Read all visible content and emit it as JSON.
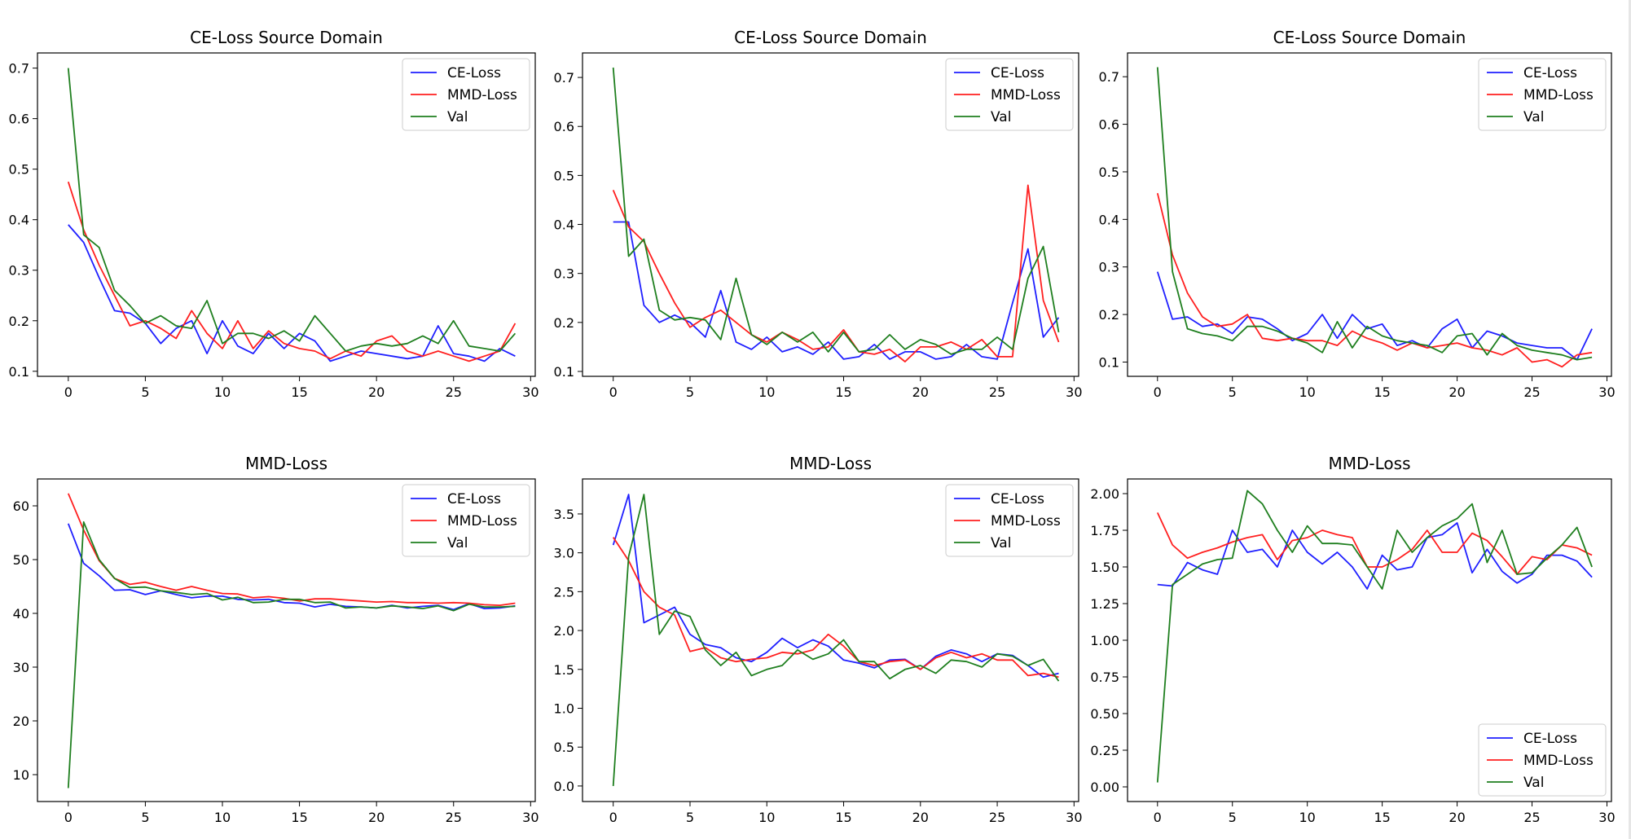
{
  "figure": {
    "background": "#ffffff"
  },
  "colors": {
    "CE-Loss": "#1f1fff",
    "MMD-Loss": "#ff1f1f",
    "Val": "#1f7f1f"
  },
  "chart_data": [
    {
      "type": "line",
      "title": "CE-Loss Source Domain",
      "xlabel": "",
      "ylabel": "",
      "xlim": [
        -2,
        30.3
      ],
      "ylim": [
        0.09,
        0.73
      ],
      "xticks": [
        0,
        5,
        10,
        15,
        20,
        25,
        30
      ],
      "yticks": [
        0.1,
        0.2,
        0.3,
        0.4,
        0.5,
        0.6,
        0.7
      ],
      "tick_decimals": 1,
      "legend_position": "top-right",
      "grid": false,
      "x": [
        0,
        1,
        2,
        3,
        4,
        5,
        6,
        7,
        8,
        9,
        10,
        11,
        12,
        13,
        14,
        15,
        16,
        17,
        18,
        19,
        20,
        21,
        22,
        23,
        24,
        25,
        26,
        27,
        28,
        29
      ],
      "series": [
        {
          "name": "CE-Loss",
          "values": [
            0.39,
            0.355,
            0.285,
            0.22,
            0.215,
            0.195,
            0.155,
            0.185,
            0.2,
            0.135,
            0.2,
            0.15,
            0.135,
            0.175,
            0.145,
            0.175,
            0.16,
            0.12,
            0.13,
            0.14,
            0.135,
            0.13,
            0.125,
            0.13,
            0.19,
            0.135,
            0.13,
            0.12,
            0.145,
            0.13
          ]
        },
        {
          "name": "MMD-Loss",
          "values": [
            0.475,
            0.38,
            0.31,
            0.25,
            0.19,
            0.2,
            0.185,
            0.165,
            0.22,
            0.175,
            0.145,
            0.2,
            0.145,
            0.18,
            0.155,
            0.145,
            0.14,
            0.125,
            0.14,
            0.13,
            0.16,
            0.17,
            0.14,
            0.13,
            0.14,
            0.13,
            0.12,
            0.13,
            0.14,
            0.195
          ]
        },
        {
          "name": "Val",
          "values": [
            0.7,
            0.37,
            0.345,
            0.26,
            0.23,
            0.195,
            0.21,
            0.19,
            0.185,
            0.24,
            0.155,
            0.175,
            0.175,
            0.165,
            0.18,
            0.16,
            0.21,
            0.175,
            0.14,
            0.15,
            0.155,
            0.15,
            0.155,
            0.17,
            0.155,
            0.2,
            0.15,
            0.145,
            0.14,
            0.175
          ]
        }
      ]
    },
    {
      "type": "line",
      "title": "CE-Loss Source Domain",
      "xlabel": "",
      "ylabel": "",
      "xlim": [
        -2,
        30.3
      ],
      "ylim": [
        0.09,
        0.75
      ],
      "xticks": [
        0,
        5,
        10,
        15,
        20,
        25,
        30
      ],
      "yticks": [
        0.1,
        0.2,
        0.3,
        0.4,
        0.5,
        0.6,
        0.7
      ],
      "tick_decimals": 1,
      "legend_position": "top-right",
      "grid": false,
      "x": [
        0,
        1,
        2,
        3,
        4,
        5,
        6,
        7,
        8,
        9,
        10,
        11,
        12,
        13,
        14,
        15,
        16,
        17,
        18,
        19,
        20,
        21,
        22,
        23,
        24,
        25,
        26,
        27,
        28,
        29
      ],
      "series": [
        {
          "name": "CE-Loss",
          "values": [
            0.405,
            0.405,
            0.235,
            0.2,
            0.215,
            0.2,
            0.17,
            0.265,
            0.16,
            0.145,
            0.17,
            0.14,
            0.15,
            0.135,
            0.16,
            0.125,
            0.13,
            0.155,
            0.125,
            0.14,
            0.14,
            0.125,
            0.13,
            0.155,
            0.13,
            0.125,
            0.24,
            0.35,
            0.17,
            0.21
          ]
        },
        {
          "name": "MMD-Loss",
          "values": [
            0.47,
            0.395,
            0.365,
            0.3,
            0.24,
            0.19,
            0.21,
            0.225,
            0.2,
            0.175,
            0.16,
            0.18,
            0.165,
            0.145,
            0.15,
            0.185,
            0.14,
            0.135,
            0.145,
            0.12,
            0.15,
            0.15,
            0.16,
            0.145,
            0.165,
            0.13,
            0.13,
            0.48,
            0.245,
            0.16
          ]
        },
        {
          "name": "Val",
          "values": [
            0.72,
            0.335,
            0.37,
            0.225,
            0.205,
            0.21,
            0.205,
            0.165,
            0.29,
            0.175,
            0.155,
            0.18,
            0.16,
            0.18,
            0.14,
            0.18,
            0.14,
            0.145,
            0.175,
            0.145,
            0.165,
            0.155,
            0.135,
            0.145,
            0.145,
            0.17,
            0.145,
            0.29,
            0.355,
            0.18
          ]
        }
      ]
    },
    {
      "type": "line",
      "title": "CE-Loss Source Domain",
      "xlabel": "",
      "ylabel": "",
      "xlim": [
        -2,
        30.3
      ],
      "ylim": [
        0.07,
        0.75
      ],
      "xticks": [
        0,
        5,
        10,
        15,
        20,
        25,
        30
      ],
      "yticks": [
        0.1,
        0.2,
        0.3,
        0.4,
        0.5,
        0.6,
        0.7
      ],
      "tick_decimals": 1,
      "legend_position": "top-right",
      "grid": false,
      "x": [
        0,
        1,
        2,
        3,
        4,
        5,
        6,
        7,
        8,
        9,
        10,
        11,
        12,
        13,
        14,
        15,
        16,
        17,
        18,
        19,
        20,
        21,
        22,
        23,
        24,
        25,
        26,
        27,
        28,
        29
      ],
      "series": [
        {
          "name": "CE-Loss",
          "values": [
            0.29,
            0.19,
            0.195,
            0.175,
            0.18,
            0.16,
            0.195,
            0.19,
            0.17,
            0.145,
            0.16,
            0.2,
            0.15,
            0.2,
            0.17,
            0.18,
            0.135,
            0.145,
            0.13,
            0.17,
            0.19,
            0.13,
            0.165,
            0.155,
            0.14,
            0.135,
            0.13,
            0.13,
            0.105,
            0.17
          ]
        },
        {
          "name": "MMD-Loss",
          "values": [
            0.455,
            0.325,
            0.245,
            0.195,
            0.175,
            0.18,
            0.2,
            0.15,
            0.145,
            0.15,
            0.145,
            0.145,
            0.135,
            0.165,
            0.15,
            0.14,
            0.125,
            0.14,
            0.13,
            0.135,
            0.14,
            0.13,
            0.125,
            0.115,
            0.13,
            0.1,
            0.105,
            0.09,
            0.115,
            0.12
          ]
        },
        {
          "name": "Val",
          "values": [
            0.72,
            0.29,
            0.17,
            0.16,
            0.155,
            0.145,
            0.175,
            0.175,
            0.165,
            0.15,
            0.14,
            0.12,
            0.185,
            0.13,
            0.175,
            0.155,
            0.145,
            0.14,
            0.135,
            0.12,
            0.155,
            0.16,
            0.115,
            0.16,
            0.135,
            0.125,
            0.12,
            0.115,
            0.105,
            0.11
          ]
        }
      ]
    },
    {
      "type": "line",
      "title": "MMD-Loss",
      "xlabel": "",
      "ylabel": "",
      "xlim": [
        -2,
        30.3
      ],
      "ylim": [
        5,
        65
      ],
      "xticks": [
        0,
        5,
        10,
        15,
        20,
        25,
        30
      ],
      "yticks": [
        10,
        20,
        30,
        40,
        50,
        60
      ],
      "tick_decimals": 0,
      "legend_position": "top-right",
      "grid": false,
      "x": [
        0,
        1,
        2,
        3,
        4,
        5,
        6,
        7,
        8,
        9,
        10,
        11,
        12,
        13,
        14,
        15,
        16,
        17,
        18,
        19,
        20,
        21,
        22,
        23,
        24,
        25,
        26,
        27,
        28,
        29
      ],
      "series": [
        {
          "name": "CE-Loss",
          "values": [
            56.7,
            49.3,
            47.0,
            44.3,
            44.4,
            43.5,
            44.2,
            43.5,
            42.9,
            43.2,
            43.2,
            42.6,
            42.5,
            42.6,
            42.0,
            41.9,
            41.2,
            41.7,
            41.3,
            41.2,
            41.0,
            41.5,
            41.0,
            41.3,
            41.5,
            40.7,
            41.8,
            40.9,
            41.0,
            41.4
          ]
        },
        {
          "name": "MMD-Loss",
          "values": [
            62.3,
            55.5,
            49.8,
            46.5,
            45.4,
            45.8,
            45.0,
            44.3,
            45.0,
            44.3,
            43.7,
            43.6,
            42.9,
            43.1,
            42.8,
            42.3,
            42.7,
            42.7,
            42.5,
            42.3,
            42.1,
            42.2,
            42.0,
            42.0,
            41.9,
            42.0,
            41.9,
            41.6,
            41.5,
            41.9
          ]
        },
        {
          "name": "Val",
          "values": [
            7.5,
            57.0,
            50.0,
            46.5,
            44.8,
            44.9,
            44.2,
            43.9,
            43.5,
            43.7,
            42.5,
            43.0,
            42.0,
            42.1,
            42.6,
            42.6,
            42.0,
            42.1,
            41.0,
            41.2,
            41.0,
            41.4,
            41.2,
            40.9,
            41.4,
            40.5,
            41.7,
            41.2,
            41.2,
            41.3
          ]
        }
      ]
    },
    {
      "type": "line",
      "title": "MMD-Loss",
      "xlabel": "",
      "ylabel": "",
      "xlim": [
        -2,
        30.3
      ],
      "ylim": [
        -0.2,
        3.95
      ],
      "xticks": [
        0,
        5,
        10,
        15,
        20,
        25,
        30
      ],
      "yticks": [
        0.0,
        0.5,
        1.0,
        1.5,
        2.0,
        2.5,
        3.0,
        3.5
      ],
      "tick_decimals": 1,
      "legend_position": "top-right",
      "grid": false,
      "x": [
        0,
        1,
        2,
        3,
        4,
        5,
        6,
        7,
        8,
        9,
        10,
        11,
        12,
        13,
        14,
        15,
        16,
        17,
        18,
        19,
        20,
        21,
        22,
        23,
        24,
        25,
        26,
        27,
        28,
        29
      ],
      "series": [
        {
          "name": "CE-Loss",
          "values": [
            3.1,
            3.75,
            2.1,
            2.2,
            2.3,
            1.95,
            1.82,
            1.78,
            1.65,
            1.6,
            1.72,
            1.9,
            1.78,
            1.88,
            1.8,
            1.62,
            1.58,
            1.52,
            1.62,
            1.63,
            1.5,
            1.67,
            1.75,
            1.7,
            1.6,
            1.7,
            1.68,
            1.55,
            1.4,
            1.45
          ]
        },
        {
          "name": "MMD-Loss",
          "values": [
            3.2,
            2.9,
            2.5,
            2.3,
            2.2,
            1.73,
            1.78,
            1.65,
            1.6,
            1.63,
            1.65,
            1.72,
            1.7,
            1.75,
            1.95,
            1.8,
            1.6,
            1.55,
            1.6,
            1.62,
            1.5,
            1.65,
            1.72,
            1.65,
            1.7,
            1.62,
            1.62,
            1.42,
            1.45,
            1.4
          ]
        },
        {
          "name": "Val",
          "values": [
            0.0,
            2.95,
            3.75,
            1.95,
            2.25,
            2.18,
            1.75,
            1.55,
            1.72,
            1.42,
            1.5,
            1.55,
            1.75,
            1.63,
            1.7,
            1.88,
            1.6,
            1.6,
            1.38,
            1.5,
            1.55,
            1.45,
            1.62,
            1.6,
            1.53,
            1.7,
            1.67,
            1.55,
            1.63,
            1.35
          ]
        }
      ]
    },
    {
      "type": "line",
      "title": "MMD-Loss",
      "xlabel": "",
      "ylabel": "",
      "xlim": [
        -2,
        30.3
      ],
      "ylim": [
        -0.1,
        2.1
      ],
      "xticks": [
        0,
        5,
        10,
        15,
        20,
        25,
        30
      ],
      "yticks": [
        0.0,
        0.25,
        0.5,
        0.75,
        1.0,
        1.25,
        1.5,
        1.75,
        2.0
      ],
      "tick_decimals": 2,
      "legend_position": "bottom-right",
      "grid": false,
      "x": [
        0,
        1,
        2,
        3,
        4,
        5,
        6,
        7,
        8,
        9,
        10,
        11,
        12,
        13,
        14,
        15,
        16,
        17,
        18,
        19,
        20,
        21,
        22,
        23,
        24,
        25,
        26,
        27,
        28,
        29
      ],
      "series": [
        {
          "name": "CE-Loss",
          "values": [
            1.38,
            1.37,
            1.53,
            1.48,
            1.45,
            1.75,
            1.6,
            1.62,
            1.5,
            1.75,
            1.6,
            1.52,
            1.6,
            1.5,
            1.35,
            1.58,
            1.48,
            1.5,
            1.7,
            1.72,
            1.8,
            1.46,
            1.62,
            1.47,
            1.39,
            1.45,
            1.58,
            1.58,
            1.54,
            1.43
          ]
        },
        {
          "name": "MMD-Loss",
          "values": [
            1.87,
            1.65,
            1.56,
            1.6,
            1.63,
            1.67,
            1.7,
            1.72,
            1.55,
            1.68,
            1.7,
            1.75,
            1.72,
            1.7,
            1.5,
            1.5,
            1.55,
            1.62,
            1.75,
            1.6,
            1.6,
            1.73,
            1.68,
            1.57,
            1.45,
            1.57,
            1.55,
            1.65,
            1.63,
            1.58
          ]
        },
        {
          "name": "Val",
          "values": [
            0.03,
            1.38,
            1.45,
            1.52,
            1.55,
            1.56,
            2.02,
            1.93,
            1.75,
            1.6,
            1.78,
            1.66,
            1.66,
            1.65,
            1.5,
            1.35,
            1.75,
            1.6,
            1.7,
            1.78,
            1.83,
            1.93,
            1.53,
            1.75,
            1.45,
            1.46,
            1.56,
            1.65,
            1.77,
            1.5
          ]
        }
      ]
    }
  ]
}
